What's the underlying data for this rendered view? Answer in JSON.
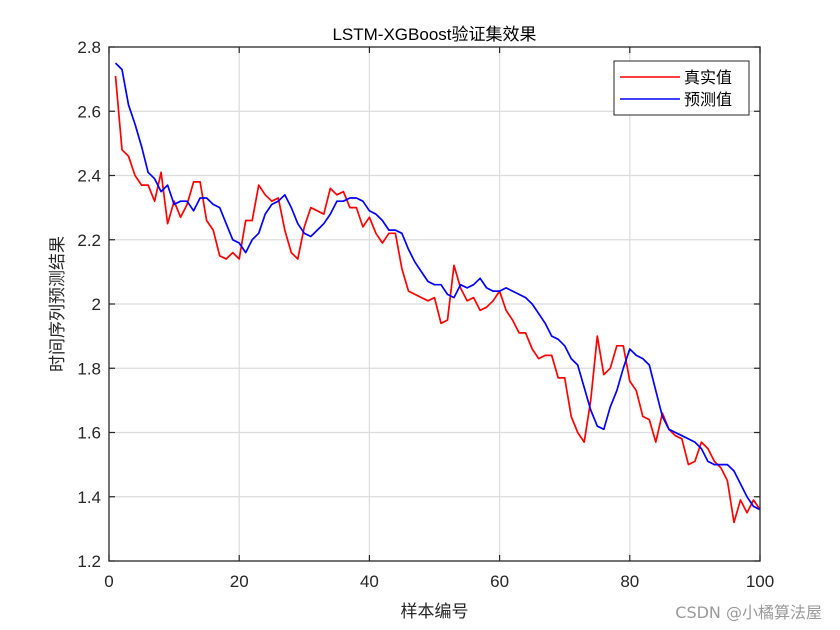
{
  "chart_data": {
    "type": "line",
    "title": "LSTM-XGBoost验证集效果",
    "xlabel": "样本编号",
    "ylabel": "时间序列预测结果",
    "xlim": [
      0,
      100
    ],
    "ylim": [
      1.2,
      2.8
    ],
    "xticks": [
      0,
      20,
      40,
      60,
      80,
      100
    ],
    "yticks": [
      1.2,
      1.4,
      1.6,
      1.8,
      2,
      2.2,
      2.4,
      2.6,
      2.8
    ],
    "xtick_labels": [
      "0",
      "20",
      "40",
      "60",
      "80",
      "100"
    ],
    "ytick_labels": [
      "1.2",
      "1.4",
      "1.6",
      "1.8",
      "2",
      "2.2",
      "2.4",
      "2.6",
      "2.8"
    ],
    "grid": true,
    "legend_position": "northeast",
    "x": [
      1,
      2,
      3,
      4,
      5,
      6,
      7,
      8,
      9,
      10,
      11,
      12,
      13,
      14,
      15,
      16,
      17,
      18,
      19,
      20,
      21,
      22,
      23,
      24,
      25,
      26,
      27,
      28,
      29,
      30,
      31,
      32,
      33,
      34,
      35,
      36,
      37,
      38,
      39,
      40,
      41,
      42,
      43,
      44,
      45,
      46,
      47,
      48,
      49,
      50,
      51,
      52,
      53,
      54,
      55,
      56,
      57,
      58,
      59,
      60,
      61,
      62,
      63,
      64,
      65,
      66,
      67,
      68,
      69,
      70,
      71,
      72,
      73,
      74,
      75,
      76,
      77,
      78,
      79,
      80,
      81,
      82,
      83,
      84,
      85,
      86,
      87,
      88,
      89,
      90,
      91,
      92,
      93,
      94,
      95,
      96,
      97,
      98,
      99,
      100
    ],
    "series": [
      {
        "name": "真实值",
        "color": "#ff0000",
        "values": [
          2.71,
          2.48,
          2.46,
          2.4,
          2.37,
          2.37,
          2.32,
          2.41,
          2.25,
          2.32,
          2.27,
          2.31,
          2.38,
          2.38,
          2.26,
          2.23,
          2.15,
          2.14,
          2.16,
          2.14,
          2.26,
          2.26,
          2.37,
          2.34,
          2.32,
          2.33,
          2.23,
          2.16,
          2.14,
          2.24,
          2.3,
          2.29,
          2.28,
          2.36,
          2.34,
          2.35,
          2.3,
          2.3,
          2.24,
          2.27,
          2.22,
          2.19,
          2.22,
          2.22,
          2.11,
          2.04,
          2.03,
          2.02,
          2.01,
          2.02,
          1.94,
          1.95,
          2.12,
          2.05,
          2.01,
          2.02,
          1.98,
          1.99,
          2.01,
          2.04,
          1.98,
          1.95,
          1.91,
          1.91,
          1.86,
          1.83,
          1.84,
          1.84,
          1.77,
          1.77,
          1.65,
          1.6,
          1.57,
          1.7,
          1.9,
          1.78,
          1.8,
          1.87,
          1.87,
          1.76,
          1.73,
          1.65,
          1.64,
          1.57,
          1.66,
          1.61,
          1.59,
          1.58,
          1.5,
          1.51,
          1.57,
          1.55,
          1.51,
          1.49,
          1.45,
          1.32,
          1.39,
          1.35,
          1.39,
          1.36
        ]
      },
      {
        "name": "预测值",
        "color": "#0000ff",
        "values": [
          2.75,
          2.73,
          2.62,
          2.56,
          2.49,
          2.41,
          2.39,
          2.35,
          2.37,
          2.31,
          2.32,
          2.32,
          2.29,
          2.33,
          2.33,
          2.31,
          2.3,
          2.25,
          2.2,
          2.19,
          2.16,
          2.2,
          2.22,
          2.28,
          2.31,
          2.32,
          2.34,
          2.3,
          2.25,
          2.22,
          2.21,
          2.23,
          2.25,
          2.28,
          2.32,
          2.32,
          2.33,
          2.33,
          2.32,
          2.29,
          2.28,
          2.26,
          2.23,
          2.23,
          2.22,
          2.17,
          2.13,
          2.1,
          2.07,
          2.06,
          2.06,
          2.03,
          2.02,
          2.06,
          2.05,
          2.06,
          2.08,
          2.05,
          2.04,
          2.04,
          2.05,
          2.04,
          2.03,
          2.02,
          2.0,
          1.97,
          1.94,
          1.9,
          1.89,
          1.87,
          1.83,
          1.81,
          1.74,
          1.67,
          1.62,
          1.61,
          1.68,
          1.73,
          1.8,
          1.86,
          1.84,
          1.83,
          1.81,
          1.73,
          1.65,
          1.61,
          1.6,
          1.59,
          1.58,
          1.57,
          1.55,
          1.51,
          1.5,
          1.5,
          1.5,
          1.48,
          1.44,
          1.4,
          1.37,
          1.36
        ]
      }
    ]
  },
  "legend": {
    "items": [
      {
        "label": "真实值",
        "color": "#ff0000"
      },
      {
        "label": "预测值",
        "color": "#0000ff"
      }
    ]
  },
  "watermark": "CSDN @小橘算法屋"
}
